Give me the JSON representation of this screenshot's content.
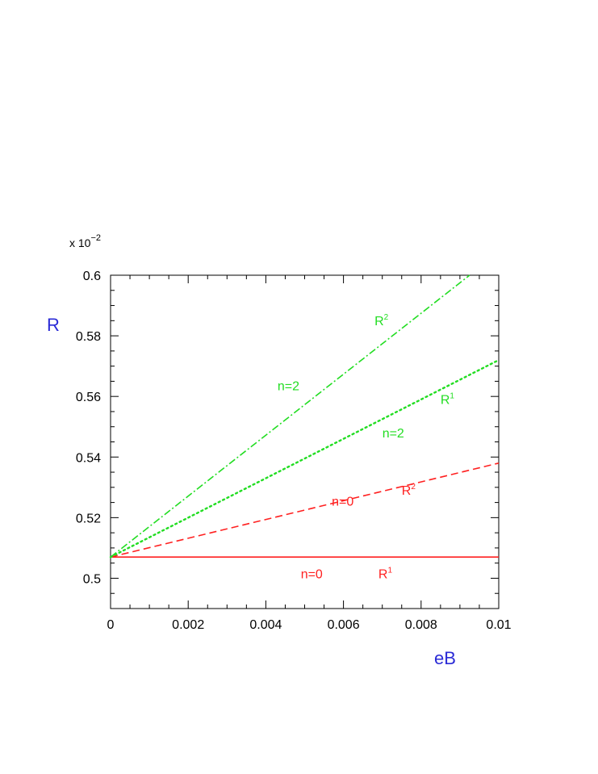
{
  "chart_data": {
    "type": "line",
    "xlabel": "eB",
    "ylabel": "R",
    "y_multiplier": "x 10",
    "y_multiplier_exp": "−2",
    "xlim": [
      0,
      0.01
    ],
    "ylim": [
      0.49,
      0.6
    ],
    "x_ticks": [
      0,
      0.002,
      0.004,
      0.006,
      0.008,
      0.01
    ],
    "x_tick_labels": [
      "0",
      "0.002",
      "0.004",
      "0.006",
      "0.008",
      "0.01"
    ],
    "y_ticks": [
      0.5,
      0.52,
      0.54,
      0.56,
      0.58,
      0.6
    ],
    "y_tick_labels": [
      "0.5",
      "0.52",
      "0.54",
      "0.56",
      "0.58",
      "0.6"
    ],
    "grid": false,
    "series": [
      {
        "x": [
          0,
          0.01
        ],
        "y": [
          0.507,
          0.507
        ],
        "color": "#ff2020",
        "style": "solid"
      },
      {
        "x": [
          0,
          0.01
        ],
        "y": [
          0.507,
          0.538
        ],
        "color": "#ff2020",
        "style": "dashed"
      },
      {
        "x": [
          0,
          0.01
        ],
        "y": [
          0.507,
          0.572
        ],
        "color": "#22dd22",
        "style": "dotted"
      },
      {
        "x": [
          0,
          0.00925
        ],
        "y": [
          0.507,
          0.6
        ],
        "color": "#22dd22",
        "style": "dashdot"
      }
    ],
    "annotations": [
      {
        "text": "n=0",
        "sup": "",
        "x": 0.0049,
        "y": 0.5,
        "color": "#ff2020"
      },
      {
        "text": "R",
        "sup": "1",
        "x": 0.0069,
        "y": 0.5,
        "color": "#ff2020"
      },
      {
        "text": "n=0",
        "sup": "",
        "x": 0.0057,
        "y": 0.524,
        "color": "#ff2020"
      },
      {
        "text": "R",
        "sup": "2",
        "x": 0.0075,
        "y": 0.5275,
        "color": "#ff2020"
      },
      {
        "text": "n=2",
        "sup": "",
        "x": 0.007,
        "y": 0.5465,
        "color": "#22dd22"
      },
      {
        "text": "R",
        "sup": "1",
        "x": 0.0085,
        "y": 0.5575,
        "color": "#22dd22"
      },
      {
        "text": "n=2",
        "sup": "",
        "x": 0.0043,
        "y": 0.562,
        "color": "#22dd22"
      },
      {
        "text": "R",
        "sup": "2",
        "x": 0.0068,
        "y": 0.5835,
        "color": "#22dd22"
      }
    ]
  }
}
